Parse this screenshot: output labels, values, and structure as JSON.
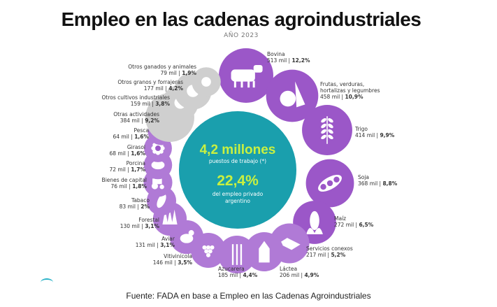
{
  "title": "Empleo en las cadenas agroindustriales",
  "year": "AÑO 2023",
  "center": {
    "total": "4,2 millones",
    "total_desc": "puestos de trabajo (*)",
    "share": "22,4%",
    "share_desc_line1": "del empleo privado",
    "share_desc_line2": "argentino"
  },
  "source": "Fuente: FADA en base a Empleo en las Cadenas Agroindustriales",
  "colors": {
    "purple": "#9b57c8",
    "purple_light": "#b07ad6",
    "gray": "#cfcfcf",
    "center_fill": "#1a9fad",
    "center_green": "#c9f040",
    "accent_line": "#2bb3c8"
  },
  "chart_data": {
    "type": "bubble",
    "unit": "mil puestos",
    "total_jobs": "4,2 millones",
    "private_employment_share": "22,4%",
    "series": [
      {
        "name": "Bovina",
        "icon": "cow-icon",
        "value": 513,
        "value_label": "513 mil",
        "pct": "12,2%"
      },
      {
        "name": "Frutas, verduras, hortalizas y legumbres",
        "icon": "fruits-icon",
        "value": 458,
        "value_label": "458 mil",
        "pct": "10,9%"
      },
      {
        "name": "Trigo",
        "icon": "wheat-icon",
        "value": 414,
        "value_label": "414 mil",
        "pct": "9,9%"
      },
      {
        "name": "Soja",
        "icon": "soy-icon",
        "value": 368,
        "value_label": "368 mil",
        "pct": "8,8%"
      },
      {
        "name": "Maíz",
        "icon": "corn-icon",
        "value": 272,
        "value_label": "272 mil",
        "pct": "6,5%"
      },
      {
        "name": "Servicios conexos",
        "icon": "handshake-icon",
        "value": 217,
        "value_label": "217 mil",
        "pct": "5,2%"
      },
      {
        "name": "Láctea",
        "icon": "milk-icon",
        "value": 206,
        "value_label": "206 mil",
        "pct": "4,9%"
      },
      {
        "name": "Azucarera",
        "icon": "sugarcane-icon",
        "value": 185,
        "value_label": "185 mil",
        "pct": "4,4%"
      },
      {
        "name": "Vitivinícola",
        "icon": "grapes-icon",
        "value": 146,
        "value_label": "146 mil",
        "pct": "3,5%"
      },
      {
        "name": "Aviar",
        "icon": "chicken-icon",
        "value": 131,
        "value_label": "131 mil",
        "pct": "3,1%"
      },
      {
        "name": "Forestal",
        "icon": "trees-icon",
        "value": 130,
        "value_label": "130 mil",
        "pct": "3,1%"
      },
      {
        "name": "Tabaco",
        "icon": "tobacco-leaf-icon",
        "value": 83,
        "value_label": "83 mil",
        "pct": "2%"
      },
      {
        "name": "Bienes de capital",
        "icon": "tractor-icon",
        "value": 76,
        "value_label": "76 mil",
        "pct": "1,8%"
      },
      {
        "name": "Porcina",
        "icon": "pig-icon",
        "value": 72,
        "value_label": "72 mil",
        "pct": "1,7%"
      },
      {
        "name": "Girasol",
        "icon": "sunflower-icon",
        "value": 68,
        "value_label": "68 mil",
        "pct": "1,6%"
      },
      {
        "name": "Pesca",
        "icon": "fish-icon",
        "value": 64,
        "value_label": "64 mil",
        "pct": "1,6%"
      },
      {
        "name": "Otras actividades",
        "icon": "",
        "value": 384,
        "value_label": "384 mil",
        "pct": "9,2%"
      },
      {
        "name": "Otros cultivos industriales",
        "icon": "cotton-icon",
        "value": 159,
        "value_label": "159 mil",
        "pct": "3,8%"
      },
      {
        "name": "Otros granos y forrajeras",
        "icon": "seed-icon",
        "value": 177,
        "value_label": "177 mil",
        "pct": "4,2%"
      },
      {
        "name": "Otros ganados y animales",
        "icon": "sheep-icon",
        "value": 79,
        "value_label": "79 mil",
        "pct": "1,9%"
      }
    ]
  }
}
